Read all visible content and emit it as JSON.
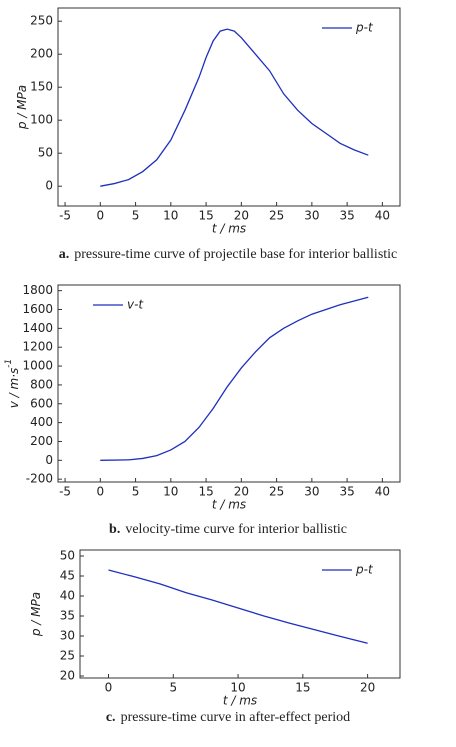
{
  "chart_data": [
    {
      "type": "line",
      "ylabel": "p / MPa",
      "xlabel": "t / ms",
      "caption_label": "a.",
      "caption": "pressure-time curve of projectile base for interior ballistic",
      "legend": "upper right",
      "xlim": [
        -6,
        42.5
      ],
      "xticks": [
        -5,
        0,
        5,
        10,
        15,
        20,
        25,
        30,
        35,
        40
      ],
      "ylim": [
        -30,
        270
      ],
      "yticks": [
        0,
        50,
        100,
        150,
        200,
        250
      ],
      "x": [
        0,
        2,
        4,
        6,
        8,
        10,
        12,
        14,
        15,
        16,
        17,
        18,
        19,
        20,
        22,
        24,
        26,
        28,
        30,
        32,
        34,
        36,
        38
      ],
      "series": [
        {
          "name": "p-t",
          "color": "#1f2fbf",
          "values": [
            0,
            4,
            10,
            22,
            40,
            70,
            115,
            165,
            195,
            220,
            235,
            238,
            235,
            225,
            200,
            175,
            140,
            115,
            95,
            80,
            65,
            55,
            47
          ]
        }
      ]
    },
    {
      "type": "line",
      "ylabel": "v / m·s",
      "ylabel_sup": "-1",
      "xlabel": "t / ms",
      "caption_label": "b.",
      "caption": "velocity-time curve for interior ballistic",
      "legend": "upper left",
      "xlim": [
        -6,
        42.5
      ],
      "xticks": [
        -5,
        0,
        5,
        10,
        15,
        20,
        25,
        30,
        35,
        40
      ],
      "ylim": [
        -230,
        1860
      ],
      "yticks": [
        -200,
        0,
        200,
        400,
        600,
        800,
        1000,
        1200,
        1400,
        1600,
        1800
      ],
      "x": [
        0,
        4,
        6,
        8,
        10,
        12,
        14,
        16,
        18,
        20,
        22,
        24,
        26,
        28,
        30,
        32,
        34,
        36,
        38
      ],
      "series": [
        {
          "name": "v-t",
          "color": "#1f2fbf",
          "values": [
            0,
            5,
            20,
            50,
            110,
            200,
            350,
            550,
            780,
            980,
            1150,
            1300,
            1400,
            1480,
            1550,
            1600,
            1650,
            1690,
            1730
          ]
        }
      ]
    },
    {
      "type": "line",
      "ylabel": "p / MPa",
      "xlabel": "t / ms",
      "caption_label": "c.",
      "caption": "pressure-time curve in after-effect period",
      "legend": "upper right",
      "xlim": [
        -2.2,
        22.5
      ],
      "xticks": [
        0,
        5,
        10,
        15,
        20
      ],
      "ylim": [
        19.5,
        51.5
      ],
      "yticks": [
        20,
        25,
        30,
        35,
        40,
        45,
        50
      ],
      "x": [
        0,
        2,
        4,
        6,
        8,
        10,
        12,
        14,
        16,
        18,
        20
      ],
      "series": [
        {
          "name": "p-t",
          "color": "#1f2fbf",
          "values": [
            46.5,
            44.8,
            43,
            40.8,
            39,
            37,
            35,
            33.2,
            31.5,
            29.8,
            28.2
          ]
        }
      ]
    }
  ]
}
